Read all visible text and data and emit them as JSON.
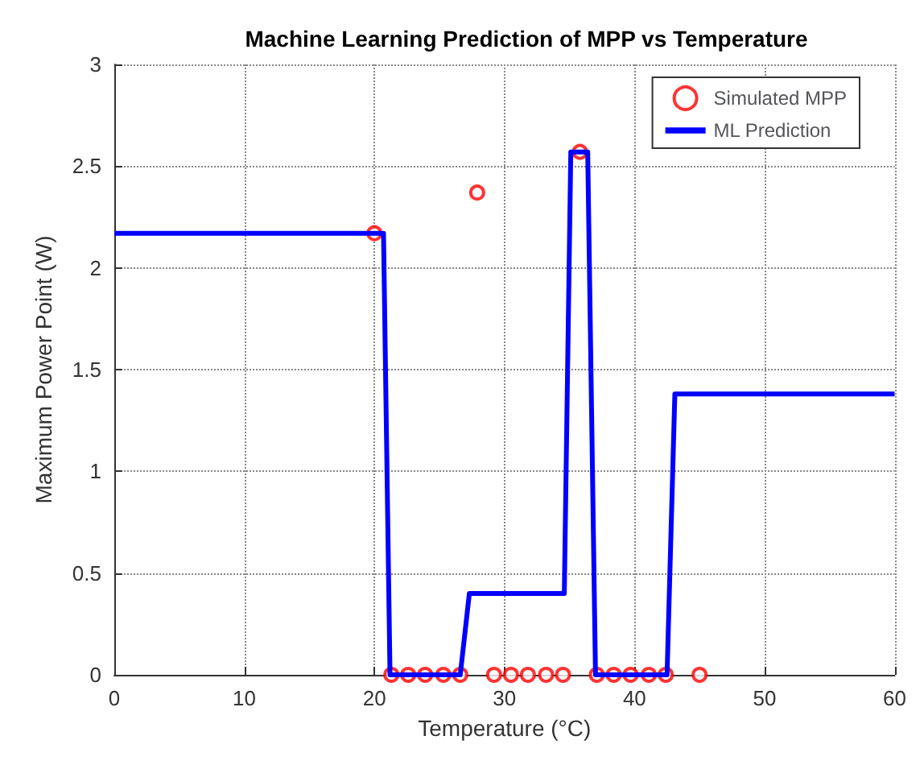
{
  "chart_data": {
    "type": "line",
    "title": "Machine Learning Prediction of MPP vs Temperature",
    "xlabel": "Temperature (°C)",
    "ylabel": "Maximum Power Point (W)",
    "xlim": [
      0,
      60
    ],
    "xticks": [
      0,
      10,
      20,
      30,
      40,
      50,
      60
    ],
    "ylim": [
      0,
      3
    ],
    "yticks": [
      0,
      0.5,
      1,
      1.5,
      2,
      2.5,
      3
    ],
    "grid": true,
    "legend": "top right",
    "series": [
      {
        "name": "Simulated MPP",
        "type": "scatter",
        "marker": "circle",
        "color": "#ff0000",
        "x": [
          20,
          21.3,
          22.6,
          23.9,
          25.3,
          26.6,
          27.9,
          29.2,
          30.5,
          31.8,
          33.2,
          34.5,
          35.8,
          37.1,
          38.4,
          39.7,
          41.1,
          42.4,
          45
        ],
        "values": [
          2.17,
          0,
          0,
          0,
          0,
          0,
          2.37,
          0,
          0,
          0,
          0,
          0,
          2.57,
          0,
          0,
          0,
          0,
          0,
          0
        ]
      },
      {
        "name": "ML Prediction",
        "marker": "none",
        "line_style": "solid",
        "color": "#0000ff",
        "x": [
          0,
          20.7,
          21.2,
          26.6,
          27.3,
          34.6,
          35.1,
          36.4,
          37,
          42.5,
          43.1,
          60
        ],
        "values": [
          2.17,
          2.17,
          0,
          0,
          0.4,
          0.4,
          2.57,
          2.57,
          0,
          0,
          1.38,
          1.38
        ]
      }
    ]
  }
}
